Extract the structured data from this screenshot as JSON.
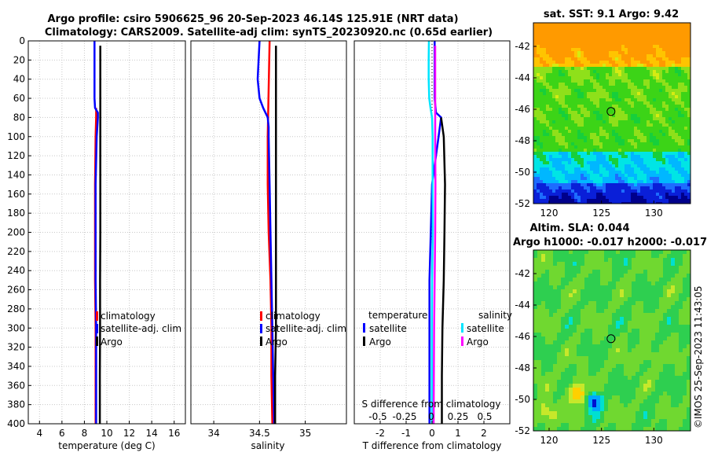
{
  "header": {
    "title_line1": "Argo profile: csiro 5906625_96 20-Sep-2023 46.14S 125.91E (NRT data)",
    "title_line2": "Climatology: CARS2009. Satellite-adj clim: synTS_20230920.nc (0.65d earlier)"
  },
  "watermark": "©IMOS 25-Sep-2023 11:43:05",
  "colors": {
    "climatology": "#ff0000",
    "satellite": "#0000ff",
    "argo": "#000000",
    "sal_satellite": "#00e5ff",
    "sal_argo": "#ff00ff"
  },
  "chart_data": [
    {
      "type": "line",
      "panel": "temperature",
      "xlabel": "temperature (deg C)",
      "xlim": [
        3,
        17
      ],
      "xticks": [
        4,
        6,
        8,
        10,
        12,
        14,
        16
      ],
      "ylim": [
        0,
        400
      ],
      "yticks": [
        0,
        20,
        40,
        60,
        80,
        100,
        120,
        140,
        160,
        180,
        200,
        220,
        240,
        260,
        280,
        300,
        320,
        340,
        360,
        380,
        400
      ],
      "legend": [
        "climatology",
        "satellite-adj. clim",
        "Argo"
      ],
      "series": [
        {
          "name": "climatology",
          "color": "#ff0000",
          "depth": [
            70,
            80,
            100,
            150,
            200,
            250,
            300,
            350,
            400
          ],
          "values": [
            9.05,
            9.05,
            9.0,
            8.95,
            8.95,
            8.95,
            9.0,
            9.0,
            9.0
          ]
        },
        {
          "name": "satellite-adj. clim",
          "color": "#0000ff",
          "depth": [
            0,
            20,
            40,
            60,
            70,
            75,
            80,
            100,
            150,
            200,
            250,
            300,
            350,
            400
          ],
          "values": [
            8.9,
            8.9,
            8.9,
            8.9,
            8.95,
            9.2,
            9.2,
            9.1,
            9.0,
            9.0,
            9.0,
            9.05,
            9.05,
            9.05
          ]
        },
        {
          "name": "Argo",
          "color": "#000000",
          "depth": [
            5,
            50,
            100,
            150,
            200,
            250,
            300,
            350,
            400
          ],
          "values": [
            9.42,
            9.42,
            9.42,
            9.42,
            9.42,
            9.4,
            9.4,
            9.38,
            9.38
          ]
        }
      ]
    },
    {
      "type": "line",
      "panel": "salinity",
      "xlabel": "salinity",
      "xlim": [
        33.75,
        35.45
      ],
      "xticks": [
        34,
        34.5,
        35
      ],
      "ylim": [
        0,
        400
      ],
      "legend": [
        "climatology",
        "satellite-adj. clim",
        "Argo"
      ],
      "series": [
        {
          "name": "climatology",
          "color": "#ff0000",
          "depth": [
            0,
            50,
            100,
            150,
            200,
            250,
            300,
            350,
            400
          ],
          "values": [
            34.61,
            34.6,
            34.59,
            34.59,
            34.6,
            34.62,
            34.63,
            34.63,
            34.64
          ]
        },
        {
          "name": "satellite-adj. clim",
          "color": "#0000ff",
          "depth": [
            0,
            20,
            40,
            50,
            60,
            70,
            80,
            90,
            100,
            150,
            200,
            250,
            300,
            350,
            400
          ],
          "values": [
            34.5,
            34.49,
            34.48,
            34.49,
            34.5,
            34.54,
            34.59,
            34.6,
            34.6,
            34.61,
            34.62,
            34.63,
            34.64,
            34.65,
            34.66
          ]
        },
        {
          "name": "Argo",
          "color": "#000000",
          "depth": [
            5,
            50,
            100,
            150,
            200,
            250,
            300,
            350,
            400
          ],
          "values": [
            34.68,
            34.68,
            34.68,
            34.68,
            34.68,
            34.68,
            34.68,
            34.67,
            34.67
          ]
        }
      ]
    },
    {
      "type": "line",
      "panel": "difference",
      "xlabel": "T difference from climatology",
      "xlabel2": "S difference from climatology",
      "xlim": [
        -3,
        3
      ],
      "xticks": [
        -2,
        -1,
        0,
        1,
        2
      ],
      "xticklabels": [
        "-2",
        "-1",
        "0",
        "1",
        "2"
      ],
      "sticks": [
        -0.5,
        -0.25,
        0,
        0.25,
        0.5
      ],
      "sticklabels": [
        "-0.5",
        "-0.25",
        "0",
        "0.25",
        "0.5"
      ],
      "ylim": [
        0,
        400
      ],
      "legend_temperature": {
        "title": "temperature",
        "items": [
          "satellite",
          "Argo"
        ]
      },
      "legend_salinity": {
        "title": "salinity",
        "items": [
          "satellite",
          "Argo"
        ]
      },
      "series": [
        {
          "name": "temperature satellite",
          "color": "#0000ff",
          "depth": [
            0,
            60,
            75,
            80,
            100,
            150,
            200,
            250,
            300,
            350,
            400
          ],
          "values": [
            0.1,
            0.1,
            0.15,
            0.35,
            0.25,
            0.0,
            -0.05,
            -0.1,
            -0.1,
            -0.1,
            -0.1
          ]
        },
        {
          "name": "temperature Argo",
          "color": "#000000",
          "depth": [
            80,
            100,
            150,
            200,
            250,
            300,
            350,
            400
          ],
          "values": [
            0.35,
            0.45,
            0.5,
            0.48,
            0.45,
            0.4,
            0.38,
            0.38
          ]
        },
        {
          "name": "salinity satellite",
          "color": "#00e5ff",
          "depth": [
            0,
            20,
            40,
            60,
            70,
            80,
            100,
            150,
            200,
            250,
            300,
            350,
            400
          ],
          "values": [
            -0.12,
            -0.13,
            -0.13,
            -0.11,
            -0.06,
            0.0,
            0.02,
            0.02,
            0.03,
            0.0,
            -0.01,
            -0.01,
            -0.01
          ]
        },
        {
          "name": "salinity Argo",
          "color": "#ff00ff",
          "depth": [
            5,
            50,
            100,
            150,
            200,
            250,
            300,
            350,
            400
          ],
          "values": [
            0.12,
            0.12,
            0.12,
            0.13,
            0.12,
            0.1,
            0.08,
            0.07,
            0.06
          ]
        }
      ]
    },
    {
      "type": "heatmap",
      "panel": "sst_map",
      "title": "sat. SST: 9.1 Argo: 9.42",
      "xlim": [
        118.5,
        133.5
      ],
      "ylim": [
        -52,
        -40.5
      ],
      "xticks": [
        120,
        125,
        130
      ],
      "yticks": [
        -42,
        -44,
        -46,
        -48,
        -50,
        -52
      ],
      "marker": {
        "lon": 125.91,
        "lat": -46.14
      }
    },
    {
      "type": "heatmap",
      "panel": "sla_map",
      "title_line1": "Altim. SLA: 0.044",
      "title_line2": "Argo h1000: -0.017 h2000: -0.017",
      "xlim": [
        118.5,
        133.5
      ],
      "ylim": [
        -52,
        -40.5
      ],
      "xticks": [
        120,
        125,
        130
      ],
      "yticks": [
        -42,
        -44,
        -46,
        -48,
        -50,
        -52
      ],
      "marker": {
        "lon": 125.91,
        "lat": -46.14
      }
    }
  ]
}
